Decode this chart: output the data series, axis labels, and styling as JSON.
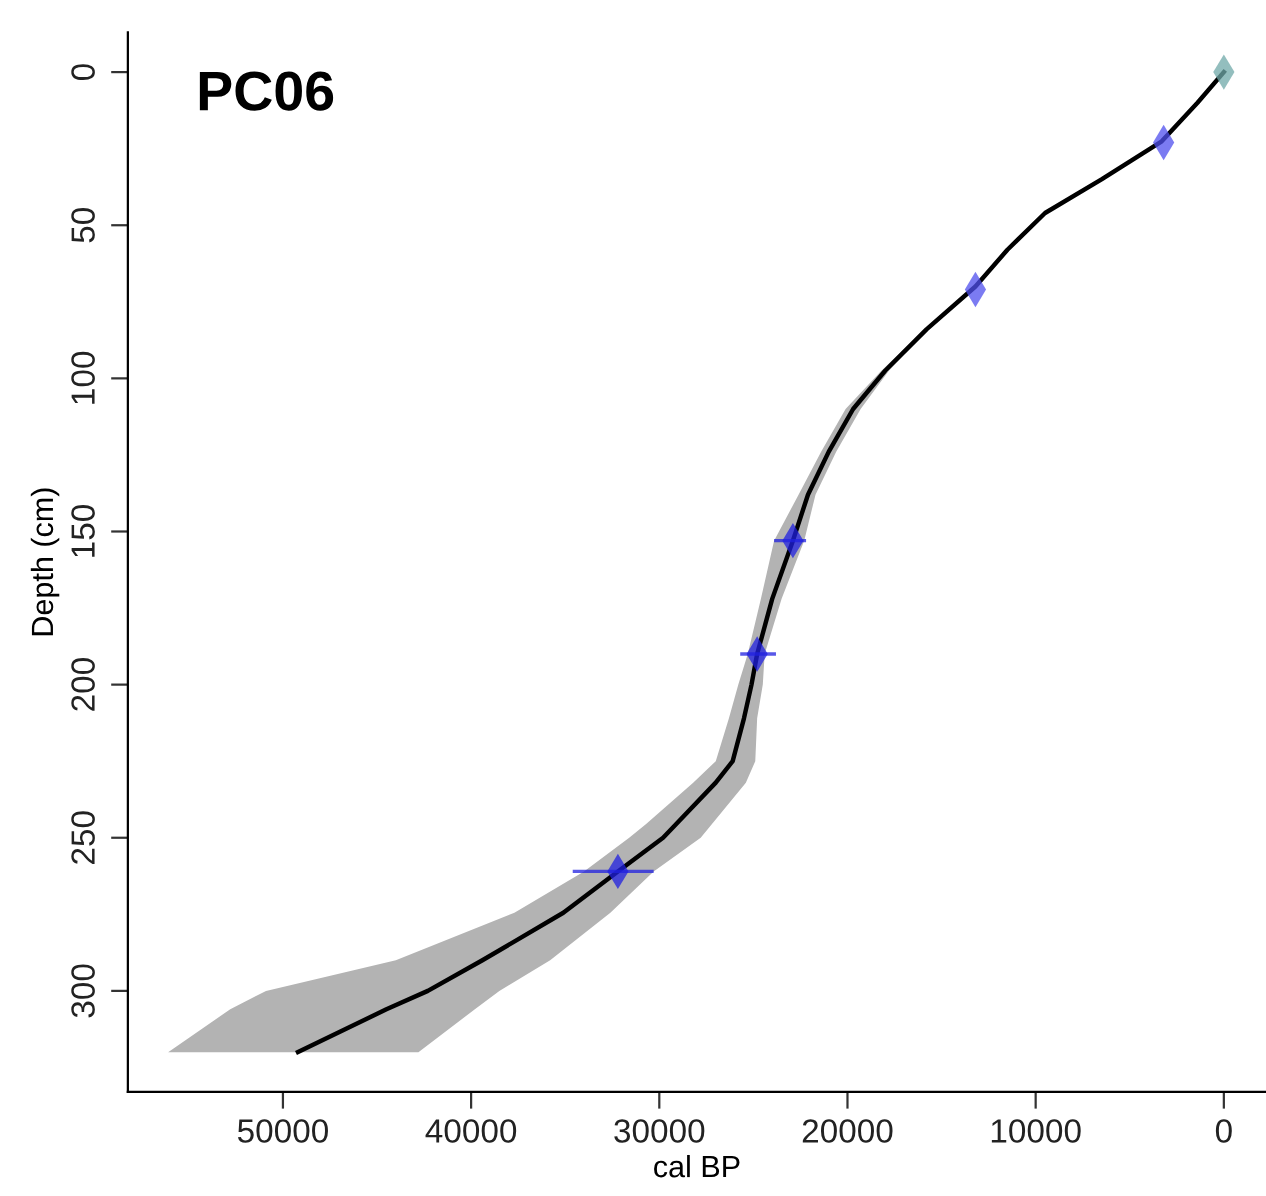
{
  "chart_data": {
    "type": "line",
    "orientation": "horizontal",
    "title": "PC06",
    "xlabel": "cal BP",
    "ylabel": "Depth (cm)",
    "xlim": [
      58240,
      -2240
    ],
    "xticks": [
      50000,
      40000,
      30000,
      20000,
      10000,
      0
    ],
    "ylim": [
      333,
      -13
    ],
    "yticks": [
      0,
      50,
      100,
      150,
      200,
      250,
      300
    ],
    "grid": false,
    "legend": false,
    "series": [
      {
        "color": "#000000",
        "line_style": "solid",
        "marker": "none",
        "x": [
          0,
          10,
          22.6,
          35,
          46,
          58,
          70,
          84,
          97.5,
          110,
          124,
          138,
          153,
          172,
          190,
          200,
          211,
          225,
          232,
          245.5,
          250,
          261,
          274.5,
          290,
          300,
          306,
          320
        ],
        "values": [
          0,
          1400,
          3300,
          6500,
          9500,
          11500,
          13200,
          15800,
          18000,
          19700,
          21000,
          22100,
          22900,
          24000,
          24800,
          25100,
          25500,
          26100,
          27000,
          29100,
          29800,
          32200,
          35100,
          39400,
          42300,
          44500,
          49200
        ],
        "lower": [
          0,
          1400,
          3300,
          6500,
          9500,
          11500,
          13200,
          15700,
          17800,
          19300,
          20600,
          21700,
          22300,
          23500,
          24400,
          24500,
          24800,
          24900,
          25400,
          27200,
          27800,
          30300,
          32600,
          35800,
          38500,
          39800,
          42800
        ],
        "upper": [
          0,
          1400,
          3300,
          6500,
          9500,
          11500,
          13200,
          15900,
          18200,
          20100,
          21400,
          22600,
          23900,
          24600,
          25300,
          25800,
          26300,
          27000,
          28200,
          30700,
          31600,
          34000,
          37700,
          44000,
          50900,
          52800,
          56100
        ]
      },
      {
        "type": "scatter",
        "marker": "diamond",
        "x": [
          0,
          23,
          71,
          153,
          190,
          261
        ],
        "values": [
          0,
          3200,
          13200,
          22900,
          24800,
          32200
        ],
        "errors": [
          null,
          null,
          null,
          [
            22200,
            23900
          ],
          [
            23800,
            25700
          ],
          [
            30300,
            34600
          ]
        ],
        "colors": [
          "#6fa8a8",
          "#4f4fee",
          "#4f4fee",
          "#2020e0",
          "#2020e0",
          "#2020e0"
        ]
      }
    ]
  }
}
